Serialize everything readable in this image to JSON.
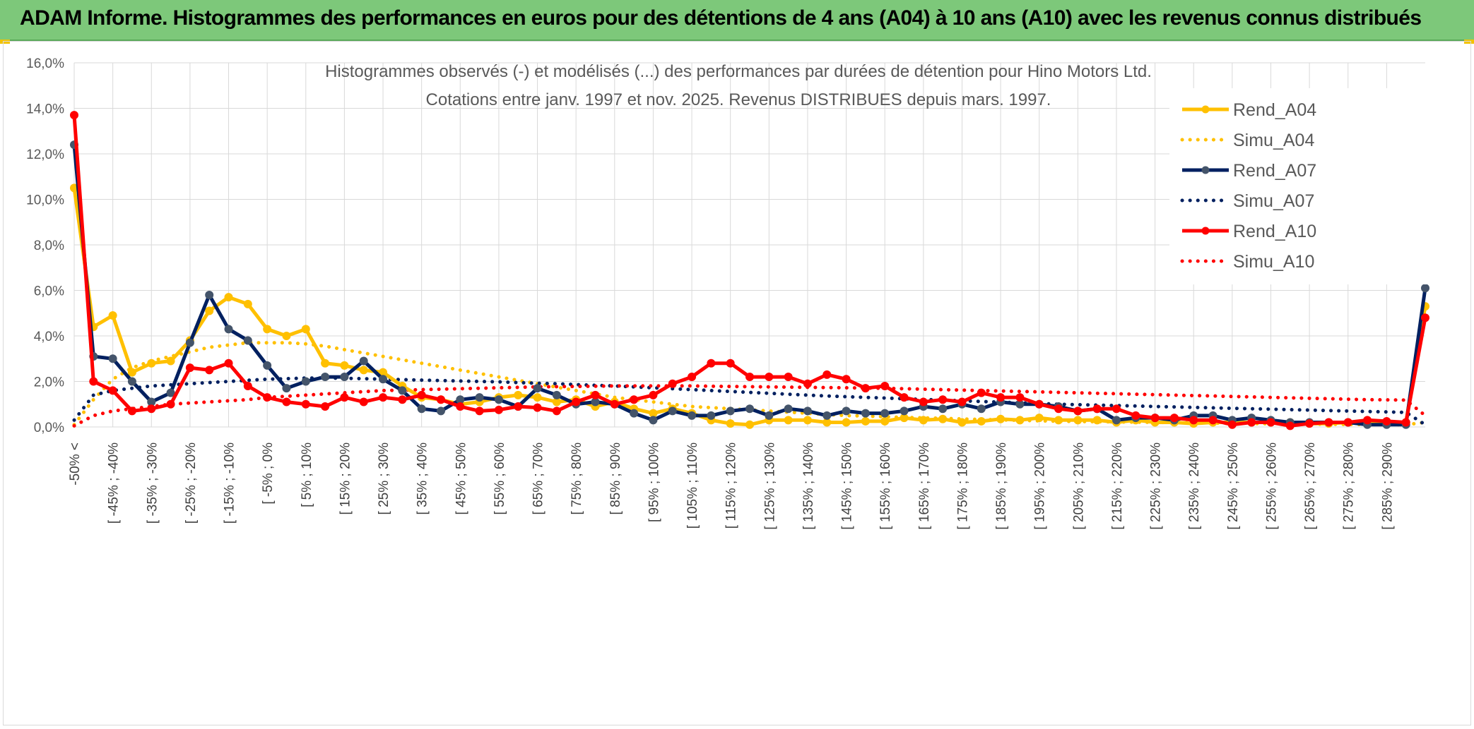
{
  "banner": {
    "title": "ADAM Informe. Histogrammes des performances en euros pour des détentions de 4 ans (A04) à 10 ans (A10) avec les revenus connus distribués"
  },
  "colors": {
    "banner_bg": "#7dc87a",
    "a04": "#ffc000",
    "a07": "#002060",
    "a07_marker": "#44546a",
    "a10": "#ff0000",
    "grid": "#d9d9d9"
  },
  "chart_data": {
    "type": "line",
    "title_lines": [
      "Histogrammes observés (-) et modélisés (...) des performances par durées de détention pour Hino Motors Ltd.",
      "Cotations entre janv. 1997 et nov. 2025. Revenus DISTRIBUES depuis mars. 1997."
    ],
    "ylim": [
      0,
      16
    ],
    "yticks": [
      0,
      2,
      4,
      6,
      8,
      10,
      12,
      14,
      16
    ],
    "ytick_labels": [
      "0,0%",
      "2,0%",
      "4,0%",
      "6,0%",
      "8,0%",
      "10,0%",
      "12,0%",
      "14,0%",
      "16,0%"
    ],
    "grid": true,
    "legend_position": "right",
    "category_labels": [
      "-50% <",
      "[ -45% ; -40%",
      "[ -35% ; -30%",
      "[ -25% ; -20%",
      "[ -15% ; -10%",
      "[ -5% ; 0%",
      "[ 5% ; 10%",
      "[ 15% ; 20%",
      "[ 25% ; 30%",
      "[ 35% ; 40%",
      "[ 45% ; 50%",
      "[ 55% ; 60%",
      "[ 65% ; 70%",
      "[ 75% ; 80%",
      "[ 85% ; 90%",
      "[ 95% ; 100%",
      "[ 105% ; 110%",
      "[ 115% ; 120%",
      "[ 125% ; 130%",
      "[ 135% ; 140%",
      "[ 145% ; 150%",
      "[ 155% ; 160%",
      "[ 165% ; 170%",
      "[ 175% ; 180%",
      "[ 185% ; 190%",
      "[ 195% ; 200%",
      "[ 205% ; 210%",
      "[ 215% ; 220%",
      "[ 225% ; 230%",
      "[ 235% ; 240%",
      "[ 245% ; 250%",
      "[ 255% ; 260%",
      "[ 265% ; 270%",
      "[ 275% ; 280%",
      "[ 285% ; 290%"
    ],
    "n_points": 71,
    "series": [
      {
        "name": "Rend_A04",
        "style": "solid",
        "marker": true,
        "color_key": "a04",
        "values": [
          10.5,
          4.4,
          4.9,
          2.4,
          2.8,
          2.9,
          3.8,
          5.1,
          5.7,
          5.4,
          4.3,
          4.0,
          4.3,
          2.8,
          2.7,
          2.5,
          2.4,
          1.8,
          1.3,
          1.2,
          1.0,
          1.1,
          1.3,
          1.4,
          1.3,
          1.1,
          1.2,
          0.9,
          1.1,
          0.8,
          0.6,
          0.8,
          0.6,
          0.3,
          0.15,
          0.1,
          0.3,
          0.3,
          0.3,
          0.2,
          0.2,
          0.25,
          0.25,
          0.4,
          0.3,
          0.35,
          0.2,
          0.25,
          0.35,
          0.3,
          0.4,
          0.3,
          0.3,
          0.3,
          0.2,
          0.3,
          0.2,
          0.2,
          0.15,
          0.2,
          0.2,
          0.2,
          0.2,
          0.2,
          0.15,
          0.15,
          0.2,
          0.2,
          0.2,
          0.2,
          5.3
        ]
      },
      {
        "name": "Simu_A04",
        "style": "dotted",
        "marker": false,
        "color_key": "a04",
        "values": [
          0.1,
          1.2,
          2.1,
          2.6,
          2.9,
          3.1,
          3.3,
          3.5,
          3.6,
          3.7,
          3.7,
          3.7,
          3.65,
          3.55,
          3.4,
          3.25,
          3.1,
          2.95,
          2.8,
          2.65,
          2.5,
          2.35,
          2.2,
          2.05,
          1.9,
          1.75,
          1.6,
          1.45,
          1.3,
          1.2,
          1.1,
          1.0,
          0.9,
          0.85,
          0.8,
          0.75,
          0.7,
          0.65,
          0.6,
          0.55,
          0.5,
          0.48,
          0.45,
          0.42,
          0.4,
          0.38,
          0.35,
          0.33,
          0.31,
          0.29,
          0.27,
          0.25,
          0.24,
          0.23,
          0.22,
          0.21,
          0.2,
          0.19,
          0.18,
          0.17,
          0.16,
          0.15,
          0.14,
          0.13,
          0.12,
          0.12,
          0.11,
          0.11,
          0.1,
          0.1,
          0.2
        ]
      },
      {
        "name": "Rend_A07",
        "style": "solid",
        "marker": true,
        "color_key": "a07",
        "values": [
          12.4,
          3.1,
          3.0,
          2.0,
          1.1,
          1.5,
          3.7,
          5.8,
          4.3,
          3.8,
          2.7,
          1.7,
          2.0,
          2.2,
          2.2,
          2.9,
          2.1,
          1.6,
          0.8,
          0.7,
          1.2,
          1.3,
          1.2,
          0.9,
          1.7,
          1.4,
          1.0,
          1.1,
          1.0,
          0.6,
          0.3,
          0.7,
          0.5,
          0.5,
          0.7,
          0.8,
          0.5,
          0.8,
          0.7,
          0.5,
          0.7,
          0.6,
          0.6,
          0.7,
          0.9,
          0.8,
          1.0,
          0.8,
          1.1,
          1.0,
          1.0,
          0.9,
          0.7,
          0.8,
          0.3,
          0.4,
          0.4,
          0.3,
          0.5,
          0.5,
          0.3,
          0.4,
          0.3,
          0.2,
          0.2,
          0.2,
          0.2,
          0.1,
          0.1,
          0.1,
          6.1
        ]
      },
      {
        "name": "Simu_A07",
        "style": "dotted",
        "marker": false,
        "color_key": "a07",
        "values": [
          0.3,
          1.4,
          1.6,
          1.7,
          1.8,
          1.85,
          1.9,
          1.95,
          2.0,
          2.05,
          2.1,
          2.12,
          2.15,
          2.15,
          2.14,
          2.12,
          2.1,
          2.08,
          2.06,
          2.04,
          2.02,
          2.0,
          1.98,
          1.95,
          1.92,
          1.9,
          1.86,
          1.83,
          1.8,
          1.76,
          1.72,
          1.68,
          1.64,
          1.6,
          1.56,
          1.52,
          1.48,
          1.44,
          1.4,
          1.36,
          1.33,
          1.3,
          1.27,
          1.24,
          1.21,
          1.18,
          1.15,
          1.12,
          1.09,
          1.06,
          1.03,
          1.0,
          0.98,
          0.96,
          0.94,
          0.92,
          0.9,
          0.88,
          0.86,
          0.84,
          0.82,
          0.8,
          0.78,
          0.76,
          0.74,
          0.72,
          0.7,
          0.68,
          0.66,
          0.64,
          0.1
        ]
      },
      {
        "name": "Rend_A10",
        "style": "solid",
        "marker": true,
        "color_key": "a10",
        "values": [
          13.7,
          2.0,
          1.6,
          0.7,
          0.8,
          1.0,
          2.6,
          2.5,
          2.8,
          1.8,
          1.3,
          1.1,
          1.0,
          0.9,
          1.3,
          1.1,
          1.3,
          1.2,
          1.4,
          1.2,
          0.9,
          0.7,
          0.75,
          0.9,
          0.85,
          0.7,
          1.1,
          1.4,
          1.0,
          1.2,
          1.4,
          1.9,
          2.2,
          2.8,
          2.8,
          2.2,
          2.2,
          2.2,
          1.9,
          2.3,
          2.1,
          1.7,
          1.8,
          1.3,
          1.1,
          1.2,
          1.1,
          1.5,
          1.3,
          1.3,
          1.0,
          0.8,
          0.7,
          0.8,
          0.8,
          0.5,
          0.4,
          0.4,
          0.3,
          0.3,
          0.1,
          0.2,
          0.2,
          0.05,
          0.15,
          0.2,
          0.2,
          0.3,
          0.25,
          0.2,
          4.8
        ]
      },
      {
        "name": "Simu_A10",
        "style": "dotted",
        "marker": false,
        "color_key": "a10",
        "values": [
          0.05,
          0.5,
          0.7,
          0.8,
          0.9,
          1.0,
          1.05,
          1.1,
          1.15,
          1.2,
          1.3,
          1.35,
          1.4,
          1.45,
          1.5,
          1.55,
          1.6,
          1.62,
          1.64,
          1.66,
          1.68,
          1.7,
          1.72,
          1.74,
          1.76,
          1.77,
          1.78,
          1.79,
          1.8,
          1.8,
          1.8,
          1.8,
          1.8,
          1.79,
          1.78,
          1.77,
          1.76,
          1.75,
          1.74,
          1.73,
          1.72,
          1.71,
          1.7,
          1.68,
          1.66,
          1.64,
          1.62,
          1.6,
          1.58,
          1.56,
          1.54,
          1.52,
          1.5,
          1.48,
          1.46,
          1.44,
          1.42,
          1.4,
          1.38,
          1.36,
          1.34,
          1.32,
          1.3,
          1.28,
          1.26,
          1.24,
          1.22,
          1.2,
          1.19,
          1.18,
          0.5
        ]
      }
    ]
  }
}
